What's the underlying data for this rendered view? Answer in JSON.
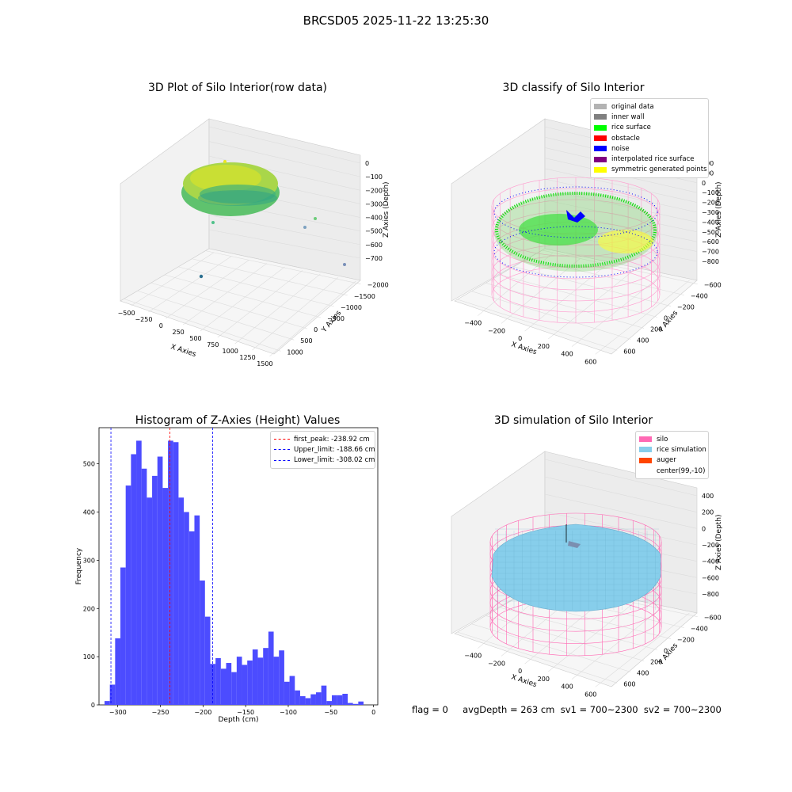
{
  "suptitle": "BRCSD05 2025-11-22 13:25:30",
  "plot1": {
    "title": "3D Plot of Silo Interior(row data)",
    "x_label": "X Axies",
    "y_label": "Y Axies",
    "z_label": "Z Axies (Depth)",
    "x_ticks": [
      "−500",
      "−250",
      "0",
      "250",
      "500",
      "750",
      "1000",
      "1250",
      "1500"
    ],
    "y_ticks": [
      "1000",
      "500",
      "0",
      "−500",
      "−1000",
      "−1500",
      "−2000"
    ],
    "z_ticks": [
      "0",
      "−100",
      "−200",
      "−300",
      "−400",
      "−500",
      "−600",
      "−700"
    ]
  },
  "plot2": {
    "title": "3D classify of Silo Interior",
    "x_label": "X Axies",
    "y_label": "Y Axies",
    "z_label": "Z Axies (Depth)",
    "x_ticks": [
      "−400",
      "−200",
      "0",
      "200",
      "400",
      "600"
    ],
    "y_ticks": [
      "600",
      "400",
      "200",
      "0",
      "−200",
      "−400",
      "−600"
    ],
    "z_ticks": [
      "200",
      "100",
      "0",
      "−100",
      "−200",
      "−300",
      "−400",
      "−500",
      "−600",
      "−700",
      "−800"
    ],
    "legend": [
      {
        "label": "original data",
        "color": "#b3b3b3"
      },
      {
        "label": "inner wall",
        "color": "#808080"
      },
      {
        "label": "rice surface",
        "color": "#00ff00"
      },
      {
        "label": "obstacle",
        "color": "#ff0000"
      },
      {
        "label": "noise",
        "color": "#0000ff"
      },
      {
        "label": "interpolated rice surface",
        "color": "#800080"
      },
      {
        "label": "symmetric generated points",
        "color": "#ffff00"
      }
    ]
  },
  "plot4": {
    "title": "3D simulation of Silo Interior",
    "x_label": "X Axies",
    "y_label": "Y Axies",
    "z_label": "Z Axies (Depth)",
    "x_ticks": [
      "−400",
      "−200",
      "0",
      "200",
      "400",
      "600"
    ],
    "y_ticks": [
      "600",
      "400",
      "200",
      "0",
      "−200",
      "−400",
      "−600"
    ],
    "z_ticks": [
      "400",
      "200",
      "0",
      "−200",
      "−400",
      "−600",
      "−800"
    ],
    "legend": [
      {
        "label": "silo",
        "color": "#ff69b4"
      },
      {
        "label": "rice simulation",
        "color": "#87ceeb"
      },
      {
        "label": "auger",
        "color": "#ff4500"
      },
      {
        "label": "center(99,-10)",
        "color": "#ffffff"
      }
    ]
  },
  "chart_data": {
    "type": "bar",
    "title": "Histogram of Z-Axies (Height) Values",
    "xlabel": "Depth (cm)",
    "ylabel": "Frequency",
    "xlim": [
      -322,
      5
    ],
    "ylim": [
      0,
      575
    ],
    "x_ticks": [
      -300,
      -250,
      -200,
      -150,
      -100,
      -50,
      0
    ],
    "y_ticks": [
      0,
      100,
      200,
      300,
      400,
      500
    ],
    "x_tick_labels": [
      "−300",
      "−250",
      "−200",
      "−150",
      "−100",
      "−50",
      "0"
    ],
    "bin_width": 6.2,
    "bin_start": -315.5,
    "values": [
      8,
      42,
      138,
      285,
      455,
      520,
      548,
      490,
      430,
      475,
      515,
      450,
      548,
      545,
      430,
      400,
      360,
      393,
      258,
      183,
      85,
      97,
      75,
      87,
      68,
      100,
      83,
      92,
      115,
      98,
      118,
      152,
      100,
      113,
      48,
      60,
      30,
      18,
      14,
      22,
      26,
      40,
      8,
      20,
      20,
      23,
      4,
      2,
      7
    ],
    "color": "#4c4cff",
    "vlines": [
      {
        "label": "first_peak: -238.92 cm",
        "x": -238.92,
        "color": "#ff0000"
      },
      {
        "label": "Upper_limit: -188.66 cm",
        "x": -188.66,
        "color": "#0000ff"
      },
      {
        "label": "Lower_limit: -308.02 cm",
        "x": -308.02,
        "color": "#0000ff"
      }
    ],
    "legend_position": "top-right"
  },
  "footer": "flag = 0     avgDepth = 263 cm  sv1 = 700~2300  sv2 = 700~2300"
}
